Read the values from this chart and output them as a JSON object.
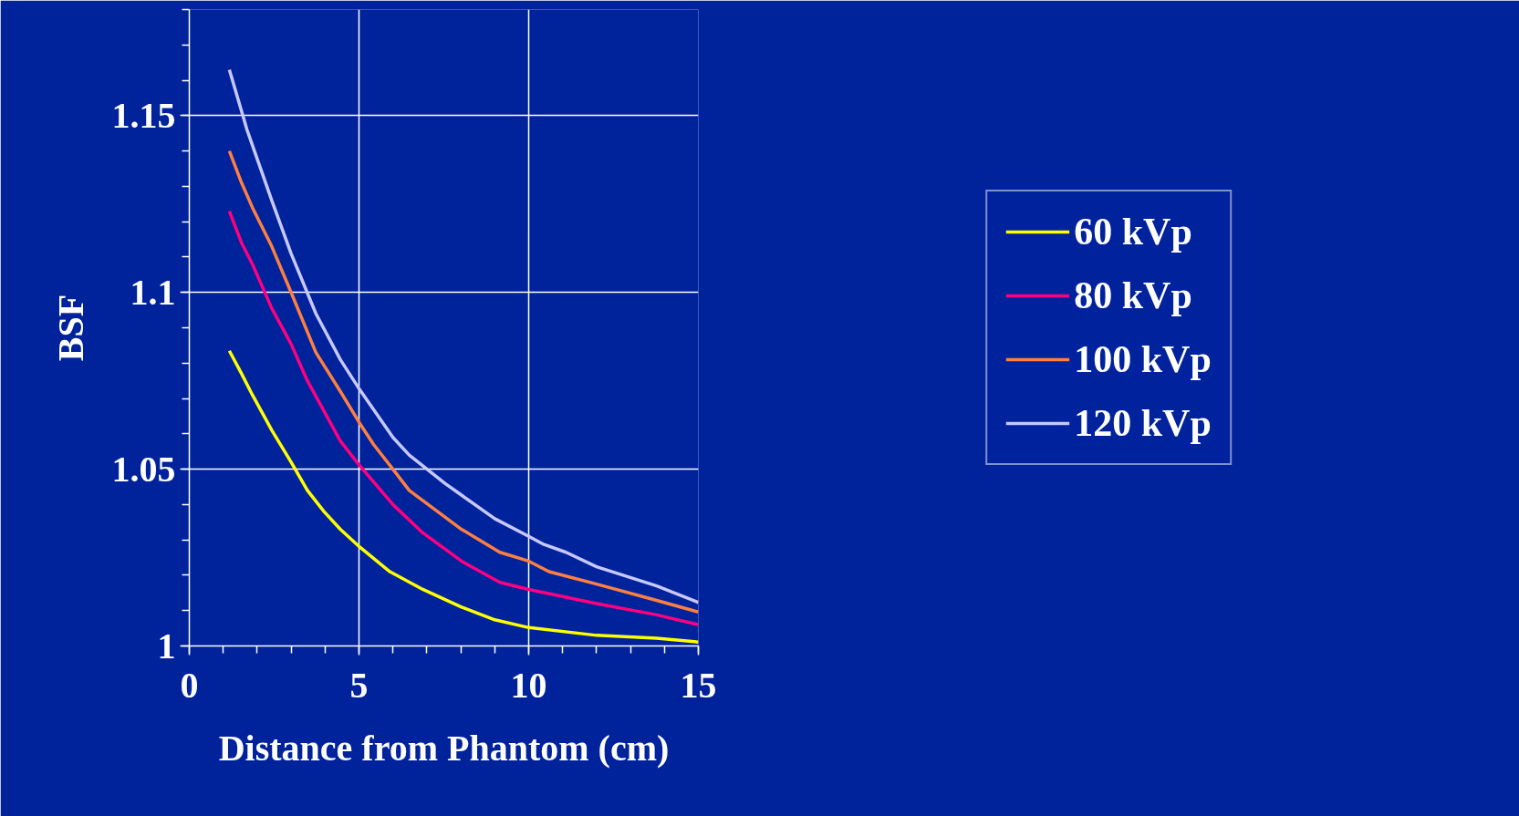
{
  "chart_data": {
    "type": "line",
    "xlabel": "Distance from Phantom (cm)",
    "ylabel": "BSF",
    "xlim": [
      0,
      15
    ],
    "xticks": [
      0,
      5,
      10,
      15
    ],
    "ylim": [
      1,
      1.18
    ],
    "yticks": [
      {
        "value": 1,
        "label": "1"
      },
      1.05,
      1.1,
      1.15
    ],
    "grid": true,
    "legend": "right",
    "marker": "none",
    "line_style": "solid",
    "series": [
      {
        "name": "60 kVp",
        "color": "#ffff00",
        "x": [
          1.18,
          1.54,
          1.86,
          2.43,
          3.0,
          3.48,
          3.97,
          4.45,
          5.02,
          5.91,
          6.88,
          8.02,
          9.0,
          10,
          12,
          13.77,
          15
        ],
        "values": [
          1.0835,
          1.077,
          1.071,
          1.061,
          1.052,
          1.044,
          1.038,
          1.033,
          1.028,
          1.021,
          1.016,
          1.011,
          1.0074,
          1.0052,
          1.003,
          1.0022,
          1.0011
        ]
      },
      {
        "name": "80 kVp",
        "color": "#ff0080",
        "x": [
          1.18,
          1.54,
          1.86,
          2.43,
          3.0,
          3.48,
          4.45,
          5.02,
          6.0,
          6.88,
          8.02,
          9.15,
          10,
          12,
          13.77,
          15
        ],
        "values": [
          1.123,
          1.114,
          1.108,
          1.0955,
          1.0854,
          1.075,
          1.058,
          1.051,
          1.04,
          1.032,
          1.024,
          1.018,
          1.016,
          1.012,
          1.0088,
          1.006
        ]
      },
      {
        "name": "100 kVp",
        "color": "#ff7f40",
        "x": [
          1.18,
          1.54,
          1.86,
          2.43,
          3.0,
          3.73,
          4.45,
          5.02,
          5.43,
          6.0,
          6.48,
          8.02,
          9.15,
          10,
          10.6,
          12,
          13.77,
          15
        ],
        "values": [
          1.14,
          1.131,
          1.124,
          1.113,
          1.1,
          1.083,
          1.072,
          1.063,
          1.057,
          1.05,
          1.044,
          1.033,
          1.0265,
          1.024,
          1.021,
          1.0175,
          1.0129,
          1.0096
        ]
      },
      {
        "name": "120 kVp",
        "color": "#c8c8ff",
        "x": [
          1.18,
          1.7,
          2.43,
          3.0,
          3.73,
          4.45,
          5.02,
          6.0,
          6.48,
          7.53,
          9.0,
          10,
          10.45,
          11.1,
          12,
          13.77,
          15
        ],
        "values": [
          1.163,
          1.146,
          1.126,
          1.111,
          1.094,
          1.081,
          1.0725,
          1.059,
          1.054,
          1.046,
          1.036,
          1.031,
          1.0287,
          1.0265,
          1.0224,
          1.017,
          1.0123
        ]
      }
    ]
  }
}
